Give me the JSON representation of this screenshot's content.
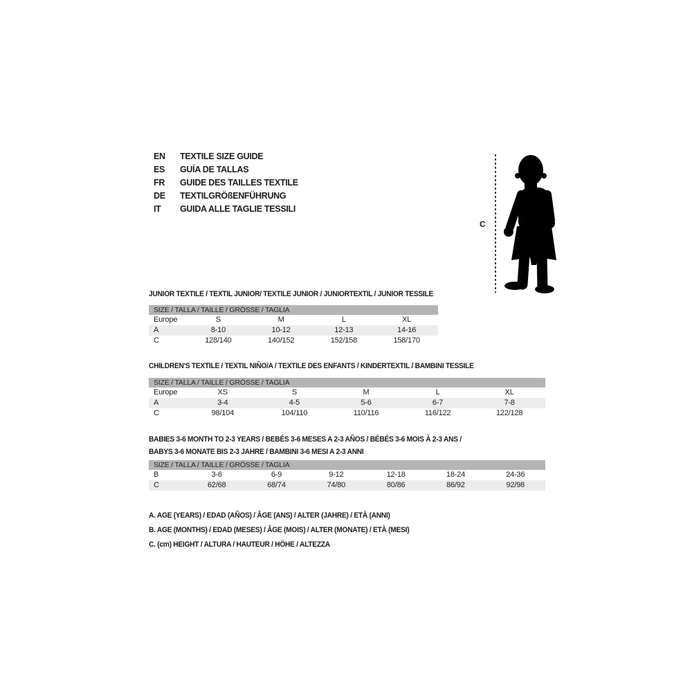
{
  "colors": {
    "header_band": "#b4b4b4",
    "shaded_row": "#ececec",
    "text": "#1c1c1c",
    "silhouette": "#000000"
  },
  "language_guide": {
    "items": [
      {
        "code": "EN",
        "label": "TEXTILE SIZE GUIDE"
      },
      {
        "code": "ES",
        "label": "GUÍA DE TALLAS"
      },
      {
        "code": "FR",
        "label": "GUIDE DES TAILLES TEXTILE"
      },
      {
        "code": "DE",
        "label": "TEXTILGRÖßENFÜHRUNG"
      },
      {
        "code": "IT",
        "label": "GUIDA ALLE TAGLIE TESSILI"
      }
    ]
  },
  "figure": {
    "height_label": "C"
  },
  "tables": [
    {
      "title_lines": [
        "JUNIOR TEXTILE / TEXTIL JUNIOR/ TEXTILE JUNIOR / JUNIORTEXTIL / JUNIOR TESSILE"
      ],
      "size_header": "SIZE / TALLA / TAILLE / GRÖSSE / TAGLIA",
      "rows": [
        {
          "label": "Europe",
          "shaded": false,
          "values": [
            "S",
            "M",
            "L",
            "XL"
          ]
        },
        {
          "label": "A",
          "shaded": true,
          "values": [
            "8-10",
            "10-12",
            "12-13",
            "14-16"
          ]
        },
        {
          "label": "C",
          "shaded": false,
          "values": [
            "128/140",
            "140/152",
            "152/158",
            "158/170"
          ]
        }
      ]
    },
    {
      "title_lines": [
        "CHILDREN'S TEXTILE / TEXTIL NIÑO/A / TEXTILE DES ENFANTS / KINDERTEXTIL / BAMBINI TESSILE"
      ],
      "size_header": "SIZE / TALLA / TAILLE / GRÖSSE / TAGLIA",
      "rows": [
        {
          "label": "Europe",
          "shaded": false,
          "values": [
            "XS",
            "S",
            "M",
            "L",
            "XL"
          ]
        },
        {
          "label": "A",
          "shaded": true,
          "values": [
            "3-4",
            "4-5",
            "5-6",
            "6-7",
            "7-8"
          ]
        },
        {
          "label": "C",
          "shaded": false,
          "values": [
            "98/104",
            "104/110",
            "110/116",
            "116/122",
            "122/128"
          ]
        }
      ]
    },
    {
      "title_lines": [
        "BABIES 3-6 MONTH TO 2-3 YEARS / BEBÉS 3-6 MESES A 2-3 AÑOS / BÉBÉS 3-6 MOIS À 2-3 ANS /",
        "BABYS 3-6 MONATE BIS 2-3 JAHRE / BAMBINI 3-6 MESI A 2-3 ANNI"
      ],
      "size_header": "SIZE / TALLA / TAILLE / GRÖSSE / TAGLIA",
      "rows": [
        {
          "label": "B",
          "shaded": false,
          "values": [
            "3-6",
            "6-9",
            "9-12",
            "12-18",
            "18-24",
            "24-36"
          ]
        },
        {
          "label": "C",
          "shaded": true,
          "values": [
            "62/68",
            "68/74",
            "74/80",
            "80/86",
            "86/92",
            "92/98"
          ]
        }
      ]
    }
  ],
  "legend": {
    "lines": [
      "A. AGE (YEARS) / EDAD (AÑOS) / ÂGE (ANS) / ALTER (JAHRE) / ETÀ (ANNI)",
      "B. AGE (MONTHS) / EDAD (MESES) / ÂGE (MOIS) / ALTER (MONATE) / ETÀ (MESI)",
      "C. (cm) HEIGHT / ALTURA / HAUTEUR / HÖHE / ALTEZZA"
    ]
  }
}
